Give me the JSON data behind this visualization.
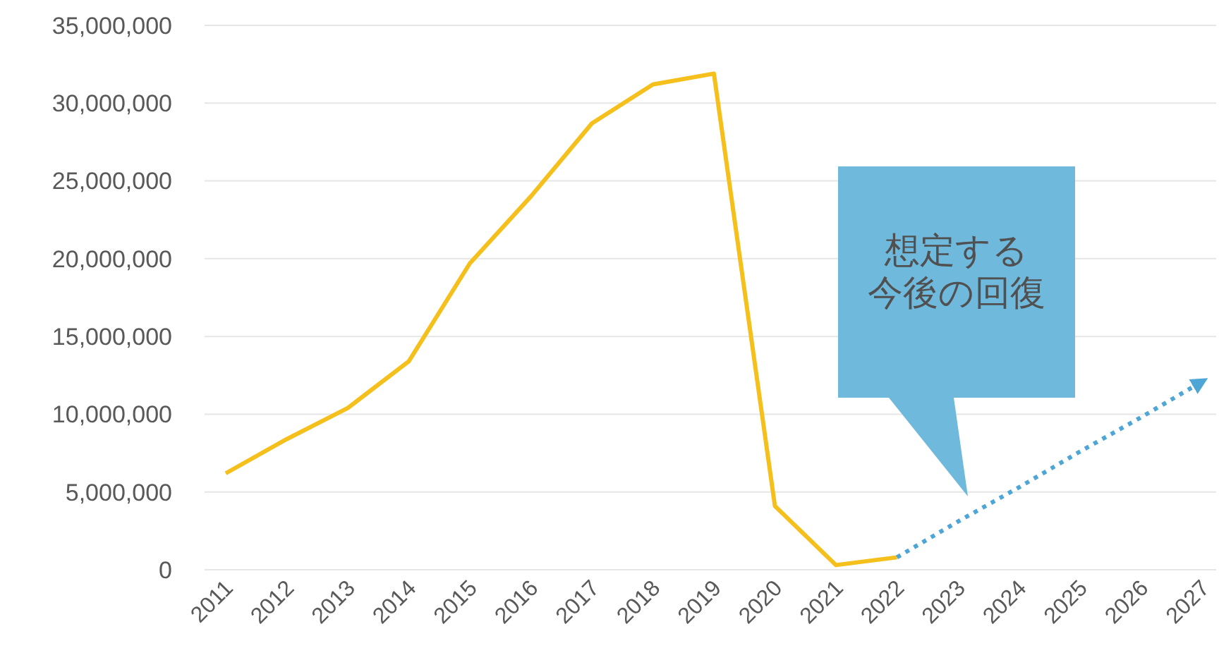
{
  "chart_data": {
    "type": "line",
    "categories": [
      "2011",
      "2012",
      "2013",
      "2014",
      "2015",
      "2016",
      "2017",
      "2018",
      "2019",
      "2020",
      "2021",
      "2022",
      "2023",
      "2024",
      "2025",
      "2026",
      "2027"
    ],
    "series": [
      {
        "color": "#f5bf1c",
        "values": [
          6200000,
          8400000,
          10400000,
          13400000,
          19700000,
          24000000,
          28700000,
          31200000,
          31900000,
          4100000,
          300000,
          800000,
          null,
          null,
          null,
          null,
          null
        ]
      },
      {
        "color": "#4ea6d6",
        "values": [
          null,
          null,
          null,
          null,
          null,
          null,
          null,
          null,
          null,
          null,
          null,
          800000,
          3100000,
          5300000,
          7600000,
          9800000,
          12100000
        ],
        "line_style": "dotted"
      }
    ],
    "ylim": [
      0,
      35000000
    ],
    "yticks": [
      {
        "value": 0,
        "label": "0"
      },
      {
        "value": 5000000,
        "label": "5,000,000"
      },
      {
        "value": 10000000,
        "label": "10,000,000"
      },
      {
        "value": 15000000,
        "label": "15,000,000"
      },
      {
        "value": 20000000,
        "label": "20,000,000"
      },
      {
        "value": 25000000,
        "label": "25,000,000"
      },
      {
        "value": 30000000,
        "label": "30,000,000"
      },
      {
        "value": 35000000,
        "label": "35,000,000"
      }
    ],
    "grid": "y",
    "marker": "none",
    "annotations": [
      "想定する今後の回復"
    ]
  }
}
